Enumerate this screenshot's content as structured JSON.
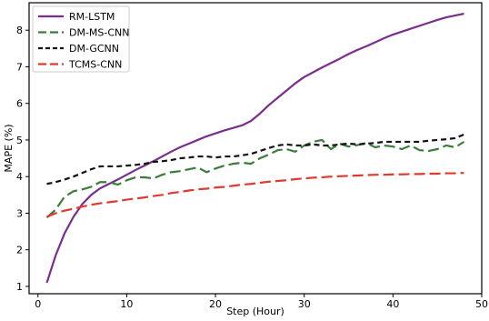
{
  "chart_data": {
    "type": "line",
    "title": "",
    "xlabel": "Step (Hour)",
    "ylabel": "MAPE (%)",
    "xlim": [
      -1,
      50
    ],
    "ylim": [
      0.8,
      8.75
    ],
    "xticks": [
      0,
      10,
      20,
      30,
      40,
      50
    ],
    "yticks": [
      1,
      2,
      3,
      4,
      5,
      6,
      7,
      8
    ],
    "xtick_labels": [
      "0",
      "10",
      "20",
      "30",
      "40",
      "50"
    ],
    "ytick_labels": [
      "1",
      "2",
      "3",
      "4",
      "5",
      "6",
      "7",
      "8"
    ],
    "grid": false,
    "legend_position": "top-left",
    "x": [
      1,
      2,
      3,
      4,
      5,
      6,
      7,
      8,
      9,
      10,
      11,
      12,
      13,
      14,
      15,
      16,
      17,
      18,
      19,
      20,
      21,
      22,
      23,
      24,
      25,
      26,
      27,
      28,
      29,
      30,
      31,
      32,
      33,
      34,
      35,
      36,
      37,
      38,
      39,
      40,
      41,
      42,
      43,
      44,
      45,
      46,
      47,
      48
    ],
    "series": [
      {
        "name": "RM-LSTM",
        "color": "#7b2d8e",
        "dash": "solid",
        "values": [
          1.1,
          1.85,
          2.45,
          2.9,
          3.25,
          3.5,
          3.68,
          3.8,
          3.92,
          4.05,
          4.18,
          4.3,
          4.42,
          4.55,
          4.68,
          4.8,
          4.9,
          5.0,
          5.1,
          5.18,
          5.26,
          5.33,
          5.4,
          5.52,
          5.72,
          5.95,
          6.15,
          6.35,
          6.55,
          6.72,
          6.85,
          6.98,
          7.1,
          7.22,
          7.35,
          7.46,
          7.56,
          7.67,
          7.78,
          7.88,
          7.96,
          8.04,
          8.12,
          8.2,
          8.28,
          8.35,
          8.4,
          8.45
        ]
      },
      {
        "name": "DM-MS-CNN",
        "color": "#3a7d3a",
        "dash": "long-dash",
        "values": [
          2.88,
          3.1,
          3.45,
          3.6,
          3.65,
          3.72,
          3.85,
          3.85,
          3.78,
          3.9,
          3.98,
          3.98,
          3.95,
          4.05,
          4.12,
          4.15,
          4.2,
          4.25,
          4.12,
          4.22,
          4.3,
          4.35,
          4.38,
          4.35,
          4.5,
          4.6,
          4.72,
          4.75,
          4.68,
          4.85,
          4.95,
          5.0,
          4.75,
          4.9,
          4.82,
          4.86,
          4.92,
          4.8,
          4.85,
          4.82,
          4.75,
          4.85,
          4.72,
          4.7,
          4.75,
          4.85,
          4.8,
          4.95
        ]
      },
      {
        "name": "DM-GCNN",
        "color": "#111111",
        "dash": "dashed",
        "values": [
          3.8,
          3.85,
          3.92,
          4.0,
          4.1,
          4.2,
          4.28,
          4.28,
          4.28,
          4.3,
          4.32,
          4.35,
          4.4,
          4.42,
          4.45,
          4.5,
          4.52,
          4.55,
          4.55,
          4.52,
          4.55,
          4.55,
          4.58,
          4.62,
          4.7,
          4.78,
          4.85,
          4.88,
          4.85,
          4.85,
          4.88,
          4.85,
          4.85,
          4.88,
          4.9,
          4.88,
          4.9,
          4.92,
          4.95,
          4.95,
          4.95,
          4.95,
          4.95,
          4.98,
          5.0,
          5.02,
          5.05,
          5.15
        ]
      },
      {
        "name": "TCMS-CNN",
        "color": "#e03a2f",
        "dash": "long-dash",
        "values": [
          2.9,
          3.0,
          3.07,
          3.12,
          3.18,
          3.23,
          3.27,
          3.3,
          3.33,
          3.37,
          3.4,
          3.43,
          3.47,
          3.5,
          3.55,
          3.58,
          3.62,
          3.65,
          3.67,
          3.7,
          3.72,
          3.75,
          3.78,
          3.8,
          3.83,
          3.86,
          3.88,
          3.9,
          3.93,
          3.95,
          3.97,
          3.98,
          4.0,
          4.01,
          4.02,
          4.03,
          4.04,
          4.05,
          4.05,
          4.06,
          4.06,
          4.07,
          4.07,
          4.08,
          4.08,
          4.09,
          4.09,
          4.1
        ]
      }
    ]
  }
}
